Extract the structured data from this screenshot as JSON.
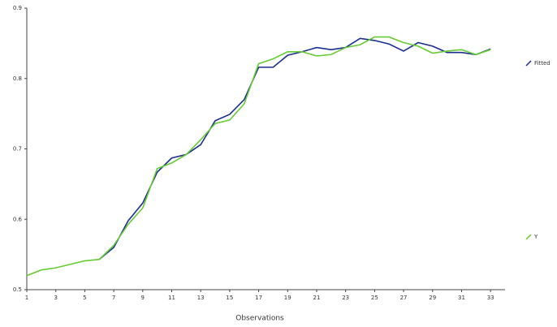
{
  "chart_data": {
    "type": "line",
    "x_label": "Observations",
    "x": [
      1,
      2,
      3,
      4,
      5,
      6,
      7,
      8,
      9,
      10,
      11,
      12,
      13,
      14,
      15,
      16,
      17,
      18,
      19,
      20,
      21,
      22,
      23,
      24,
      25,
      26,
      27,
      28,
      29,
      30,
      31,
      32,
      33
    ],
    "series": [
      {
        "name": "Fitted",
        "color": "#1b2f8f",
        "values": [
          null,
          null,
          null,
          null,
          null,
          0.543,
          0.56,
          0.598,
          0.623,
          0.667,
          0.687,
          0.692,
          0.706,
          0.74,
          0.749,
          0.77,
          0.816,
          0.816,
          0.833,
          0.838,
          0.844,
          0.841,
          0.844,
          0.857,
          0.854,
          0.849,
          0.839,
          0.851,
          0.846,
          0.837,
          0.837,
          0.834,
          0.842
        ]
      },
      {
        "name": "Y",
        "color": "#66cc33",
        "values": [
          0.52,
          0.528,
          0.531,
          0.536,
          0.541,
          0.543,
          0.563,
          0.593,
          0.616,
          0.672,
          0.68,
          0.692,
          0.713,
          0.736,
          0.741,
          0.764,
          0.821,
          0.828,
          0.838,
          0.838,
          0.832,
          0.834,
          0.844,
          0.848,
          0.859,
          0.859,
          0.851,
          0.846,
          0.836,
          0.839,
          0.841,
          0.834,
          0.841
        ]
      }
    ],
    "xlim": [
      1,
      34
    ],
    "xticks": [
      1,
      3,
      5,
      7,
      9,
      11,
      13,
      15,
      17,
      19,
      21,
      23,
      25,
      27,
      29,
      31,
      33
    ],
    "ylim": [
      0.5,
      0.9
    ],
    "yticks": [
      0.5,
      0.6,
      0.7,
      0.8,
      0.9
    ]
  }
}
